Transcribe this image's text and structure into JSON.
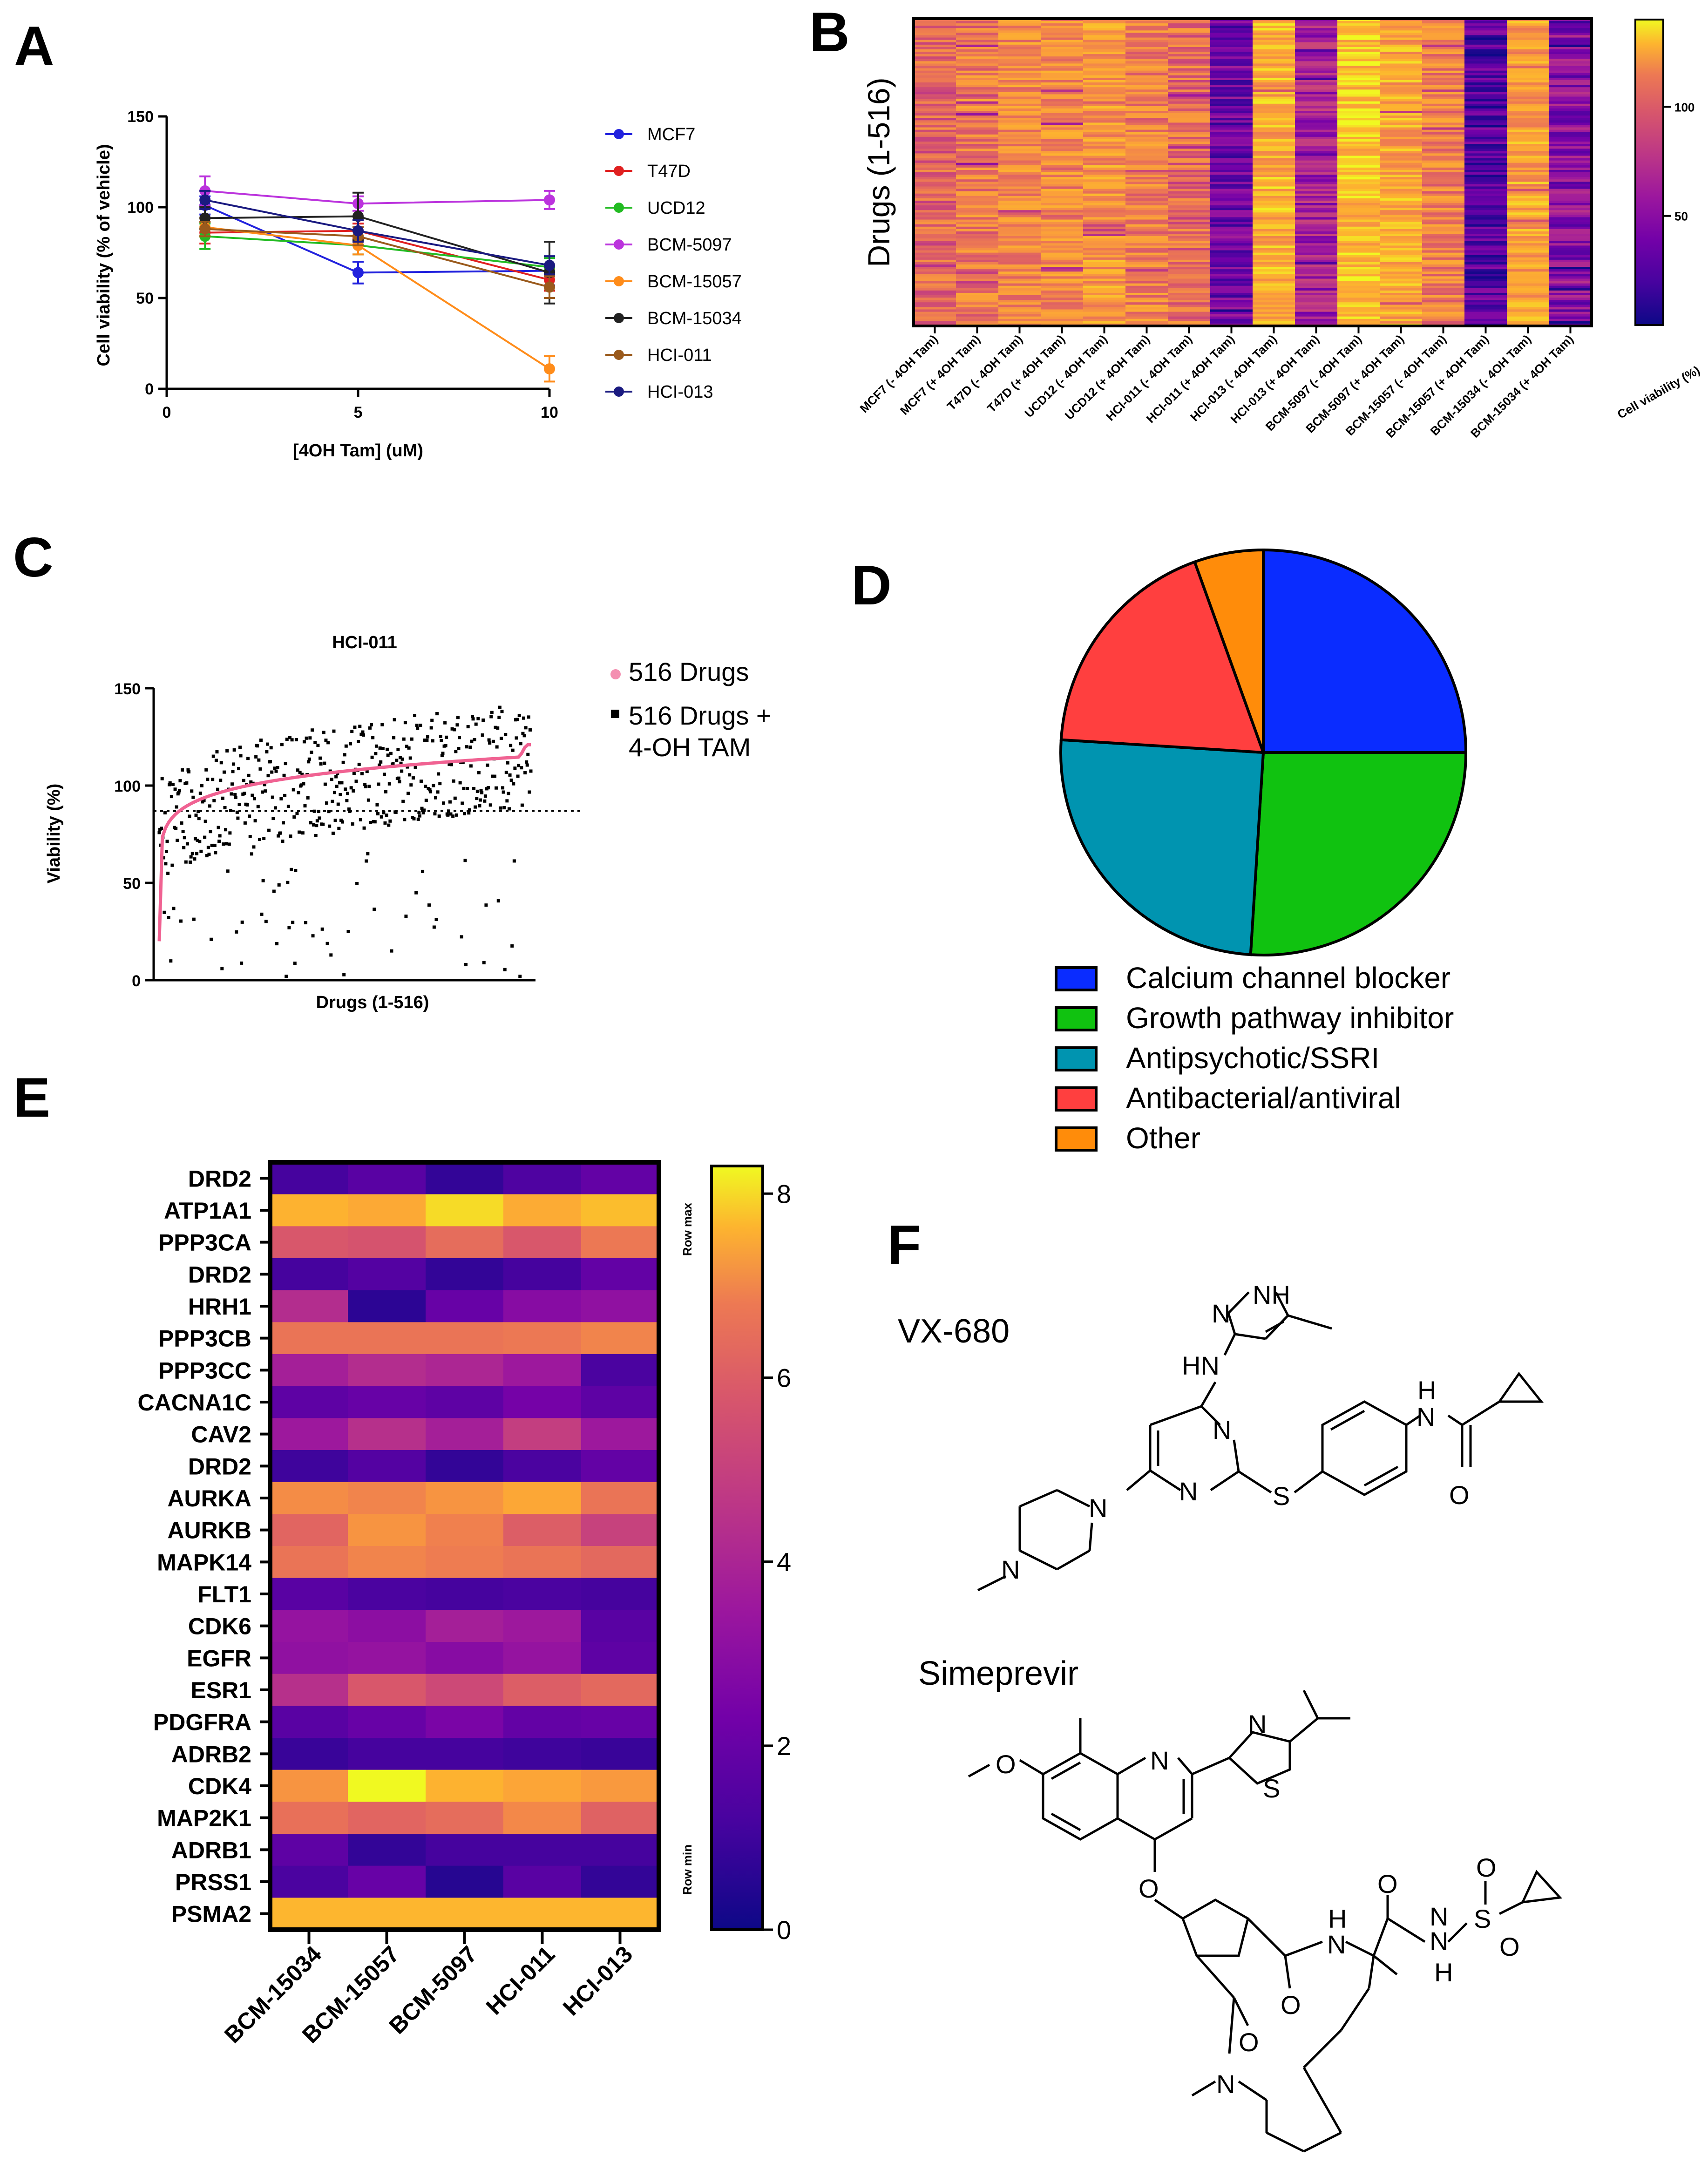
{
  "panels": {
    "A": "A",
    "B": "B",
    "C": "C",
    "D": "D",
    "E": "E",
    "F": "F"
  },
  "chart_data": [
    {
      "panel": "A",
      "type": "line",
      "xlabel": "[4OH Tam] (uM)",
      "ylabel": "Cell viability (% of vehicle)",
      "x": [
        1,
        5,
        10
      ],
      "xlim": [
        0,
        10
      ],
      "ylim": [
        0,
        150
      ],
      "xticks": [
        "0",
        "5",
        "10"
      ],
      "yticks": [
        "0",
        "50",
        "100",
        "150"
      ],
      "series": [
        {
          "name": "MCF7",
          "color": "#2222dd",
          "values": [
            101,
            64,
            65
          ],
          "err": [
            5,
            6,
            8
          ]
        },
        {
          "name": "T47D",
          "color": "#e02020",
          "values": [
            86,
            87,
            60
          ],
          "err": [
            6,
            4,
            6
          ]
        },
        {
          "name": "UCD12",
          "color": "#22bb22",
          "values": [
            84,
            79,
            67
          ],
          "err": [
            7,
            5,
            5
          ]
        },
        {
          "name": "BCM-5097",
          "color": "#bb33dd",
          "values": [
            109,
            102,
            104
          ],
          "err": [
            8,
            4,
            5
          ]
        },
        {
          "name": "BCM-15057",
          "color": "#ff8c1a",
          "values": [
            89,
            79,
            11
          ],
          "err": [
            5,
            5,
            7
          ]
        },
        {
          "name": "BCM-15034",
          "color": "#222222",
          "values": [
            94,
            95,
            64
          ],
          "err": [
            6,
            13,
            17
          ]
        },
        {
          "name": "HCI-011",
          "color": "#9a5a1c",
          "values": [
            88,
            84,
            56
          ],
          "err": [
            4,
            5,
            6
          ]
        },
        {
          "name": "HCI-013",
          "color": "#1a1a80",
          "values": [
            104,
            87,
            68
          ],
          "err": [
            5,
            6,
            5
          ]
        }
      ]
    },
    {
      "panel": "B",
      "type": "heatmap",
      "ylabel": "Drugs (1-516)",
      "columns": [
        "MCF7 (- 4OH Tam)",
        "MCF7 (+ 4OH Tam)",
        "T47D (- 4OH Tam)",
        "T47D (+ 4OH Tam)",
        "UCD12 (- 4OH Tam)",
        "UCD12 (+ 4OH Tam)",
        "HCI-011 (- 4OH Tam)",
        "HCI-011 (+ 4OH Tam)",
        "HCI-013 (- 4OH Tam)",
        "HCI-013 (+ 4OH Tam)",
        "BCM-5097 (- 4OH Tam)",
        "BCM-5097 (+ 4OH Tam)",
        "BCM-15057 (- 4OH Tam)",
        "BCM-15057 (+ 4OH Tam)",
        "BCM-15034 (- 4OH Tam)",
        "BCM-15034 (+ 4OH Tam)"
      ],
      "column_means": [
        85,
        95,
        102,
        104,
        108,
        98,
        88,
        30,
        118,
        50,
        124,
        115,
        96,
        22,
        112,
        40
      ],
      "n_rows": 516,
      "colorbar": {
        "label": "Cell viability (%)",
        "ticks": [
          "50",
          "100"
        ],
        "range": [
          0,
          140
        ]
      }
    },
    {
      "panel": "C",
      "type": "scatter",
      "title": "HCI-011",
      "xlabel": "Drugs (1-516)",
      "ylabel": "Viability (%)",
      "ylim": [
        0,
        150
      ],
      "yticks": [
        "0",
        "50",
        "100",
        "150"
      ],
      "reference_line": 87,
      "legend": [
        "516 Drugs",
        "516 Drugs +\n4-OH TAM"
      ],
      "n_points": 516
    },
    {
      "panel": "D",
      "type": "pie",
      "labels": [
        "Calcium channel blocker",
        "Growth pathway inhibitor",
        "Antipsychotic/SSRI",
        "Antibacterial/antiviral",
        "Other"
      ],
      "values": [
        25,
        26,
        25,
        18.5,
        5.5
      ],
      "colors": [
        "#0a2cff",
        "#10c210",
        "#0094b0",
        "#ff3f3f",
        "#ff8c0a"
      ]
    },
    {
      "panel": "E",
      "type": "heatmap",
      "rows": [
        "DRD2",
        "ATP1A1",
        "PPP3CA",
        "DRD2",
        "HRH1",
        "PPP3CB",
        "PPP3CC",
        "CACNA1C",
        "CAV2",
        "DRD2",
        "AURKA",
        "AURKB",
        "MAPK14",
        "FLT1",
        "CDK6",
        "EGFR",
        "ESR1",
        "PDGFRA",
        "ADRB2",
        "CDK4",
        "MAP2K1",
        "ADRB1",
        "PRSS1",
        "PSMA2"
      ],
      "columns": [
        "BCM-15034",
        "BCM-15057",
        "BCM-5097",
        "HCI-011",
        "HCI-013"
      ],
      "values": [
        [
          0.9,
          1.3,
          0.6,
          1.1,
          1.5
        ],
        [
          7.3,
          6.9,
          7.9,
          7.0,
          7.5
        ],
        [
          4.6,
          4.5,
          5.2,
          4.6,
          5.5
        ],
        [
          0.9,
          1.2,
          0.6,
          0.9,
          1.5
        ],
        [
          3.4,
          0.5,
          1.6,
          2.3,
          2.5
        ],
        [
          5.4,
          5.4,
          5.4,
          5.5,
          5.8
        ],
        [
          3.0,
          3.4,
          3.2,
          2.8,
          1.0
        ],
        [
          1.4,
          1.6,
          1.4,
          1.9,
          1.4
        ],
        [
          2.8,
          3.5,
          3.0,
          3.9,
          2.8
        ],
        [
          0.8,
          1.2,
          0.6,
          1.0,
          1.5
        ],
        [
          6.0,
          5.8,
          6.2,
          6.8,
          5.4
        ],
        [
          5.0,
          6.2,
          5.7,
          4.8,
          4.0
        ],
        [
          5.4,
          5.8,
          5.6,
          5.4,
          5.1
        ],
        [
          1.3,
          1.0,
          0.9,
          1.0,
          0.9
        ],
        [
          2.6,
          2.4,
          3.0,
          2.8,
          1.3
        ],
        [
          2.5,
          2.6,
          2.3,
          2.6,
          1.4
        ],
        [
          3.5,
          4.6,
          4.2,
          4.8,
          5.1
        ],
        [
          1.3,
          1.6,
          2.0,
          1.5,
          1.6
        ],
        [
          0.7,
          0.9,
          0.9,
          0.8,
          0.7
        ],
        [
          6.2,
          8.3,
          7.3,
          6.7,
          6.3
        ],
        [
          5.3,
          5.0,
          5.2,
          5.9,
          4.9
        ],
        [
          1.4,
          0.6,
          0.9,
          0.9,
          0.9
        ],
        [
          1.0,
          1.6,
          0.4,
          1.3,
          0.6
        ],
        [
          7.4,
          7.4,
          7.4,
          7.4,
          7.4
        ]
      ],
      "colorbar": {
        "ticks": [
          "0",
          "2",
          "4",
          "6",
          "8"
        ],
        "range": [
          0,
          8.3
        ],
        "top_label": "Row max",
        "bottom_label": "Row min"
      }
    }
  ],
  "panel_F": {
    "compounds": [
      "VX-680",
      "Simeprevir"
    ],
    "vx680_atoms": {
      "n1": "N",
      "nh1": "NH",
      "hn": "HN",
      "n2": "N",
      "n3": "N",
      "s": "S",
      "nh2": "N",
      "h2": "H",
      "o": "O",
      "n4": "N",
      "n5": "N"
    },
    "simeprevir_atoms": {
      "o1": "O",
      "n1": "N",
      "n2": "N",
      "s1": "S",
      "o2": "O",
      "n3": "N",
      "h3": "H",
      "o3": "O",
      "o4": "O",
      "n4": "N",
      "s2": "S",
      "o5": "O",
      "o6": "O",
      "n5": "N",
      "h5": "H",
      "o7": "O",
      "n6": "N"
    }
  }
}
